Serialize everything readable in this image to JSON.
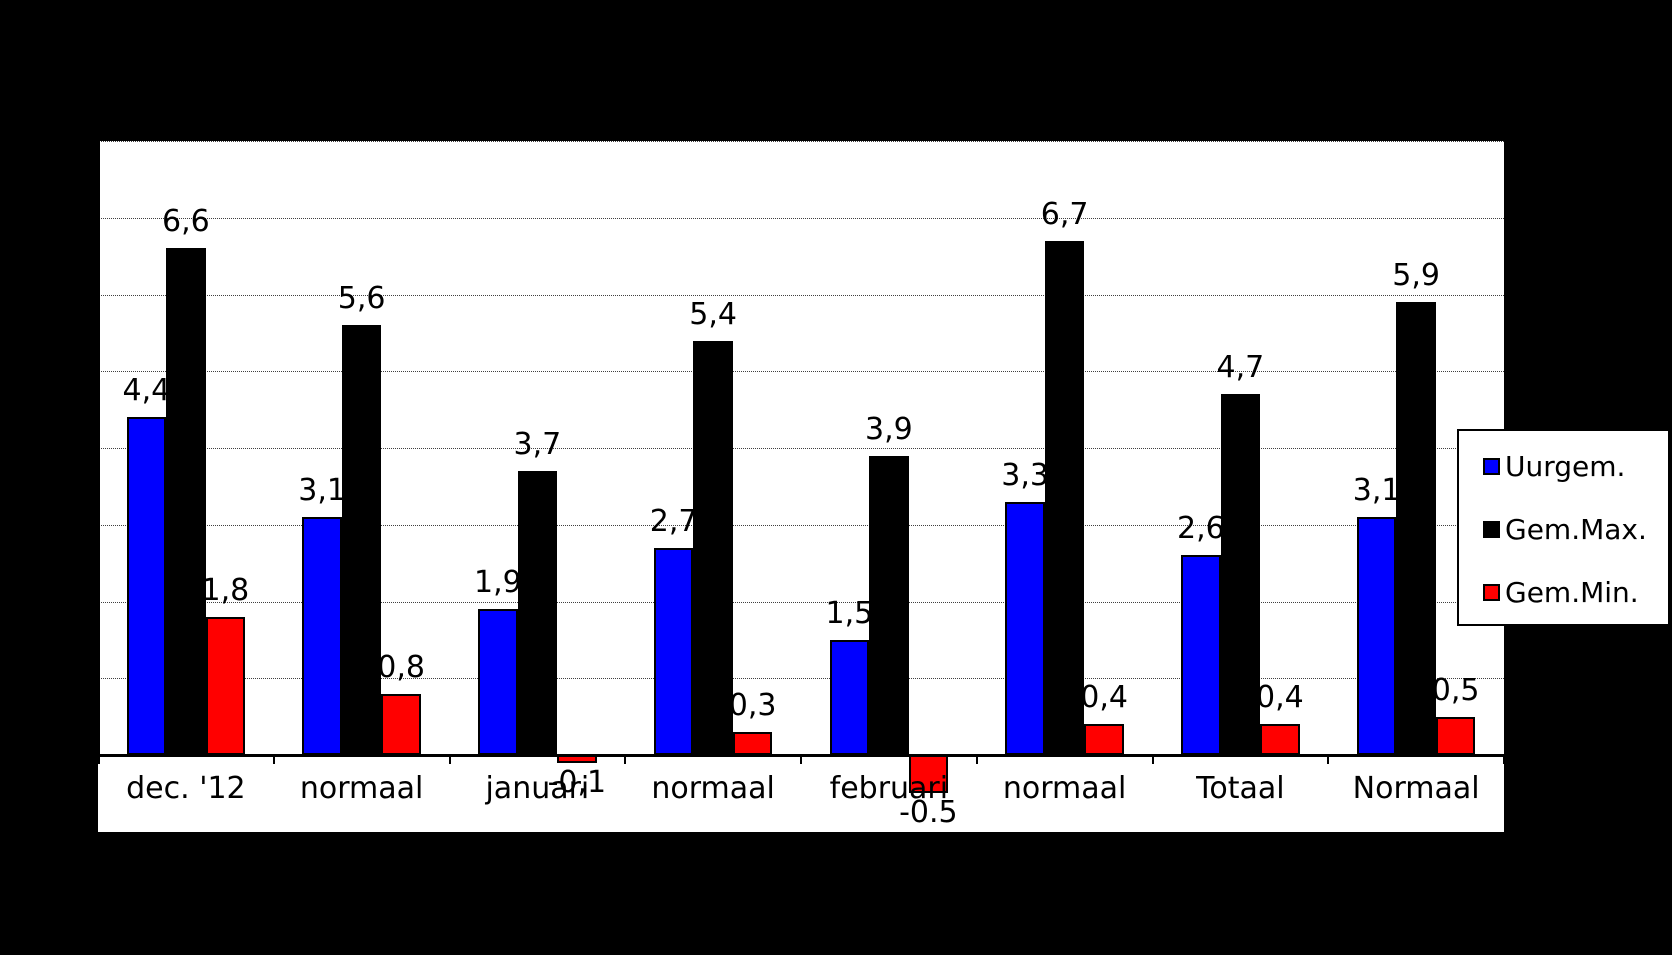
{
  "canvas": {
    "background_color": "#000000",
    "plot_background_color": "#ffffff",
    "gridline_color": "#404040",
    "axis_color": "#000000"
  },
  "chart_data": {
    "type": "bar",
    "title": "",
    "categories": [
      "dec. '12",
      "normaal",
      "januari",
      "normaal",
      "februari",
      "normaal",
      "Totaal",
      "Normaal"
    ],
    "series": [
      {
        "name": "Uurgem.",
        "color": "#0000ff",
        "values": [
          4.4,
          3.1,
          1.9,
          2.7,
          1.5,
          3.3,
          2.6,
          3.1
        ],
        "labels": [
          "4,4",
          "3,1",
          "1,9",
          "2,7",
          "1,5",
          "3,3",
          "2,6",
          "3,1"
        ]
      },
      {
        "name": "Gem.Max.",
        "color": "#000000",
        "values": [
          6.6,
          5.6,
          3.7,
          5.4,
          3.9,
          6.7,
          4.7,
          5.9
        ],
        "labels": [
          "6,6",
          "5,6",
          "3,7",
          "5,4",
          "3,9",
          "6,7",
          "4,7",
          "5,9"
        ]
      },
      {
        "name": "Gem.Min.",
        "color": "#ff0000",
        "values": [
          1.8,
          0.8,
          -0.1,
          0.3,
          -0.5,
          0.4,
          0.4,
          0.5
        ],
        "labels": [
          "1,8",
          "0,8",
          "-0,1",
          "0,3",
          "-0.5",
          "0,4",
          "0,4",
          "0,5"
        ]
      }
    ],
    "ylim": [
      0,
      8
    ],
    "grid_step": 1,
    "grid": true,
    "y_axis_labels_visible": false,
    "data_labels_visible": true,
    "legend": {
      "position": "right",
      "entries": [
        "Uurgem.",
        "Gem.Max.",
        "Gem.Min."
      ]
    }
  }
}
